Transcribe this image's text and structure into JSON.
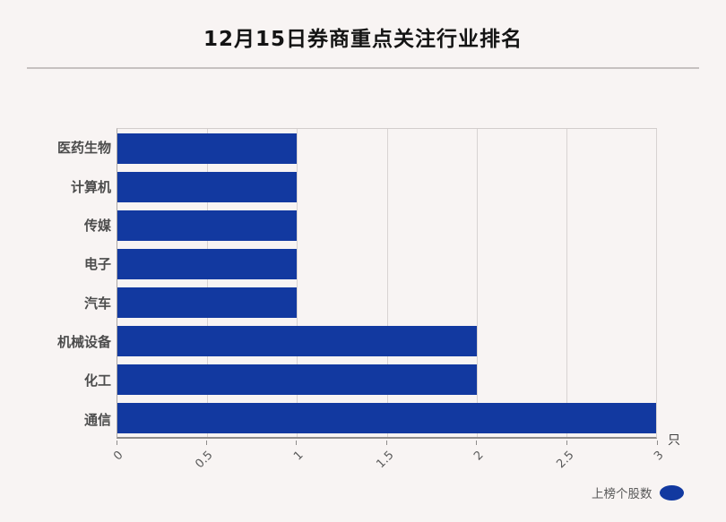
{
  "header": {
    "title": "12月15日券商重点关注行业排名"
  },
  "chart_data": {
    "type": "bar",
    "orientation": "horizontal",
    "title": "12月15日券商重点关注行业排名",
    "categories": [
      "医药生物",
      "计算机",
      "传媒",
      "电子",
      "汽车",
      "机械设备",
      "化工",
      "通信"
    ],
    "series": [
      {
        "name": "上榜个股数",
        "values": [
          1,
          1,
          1,
          1,
          1,
          2,
          2,
          3
        ]
      }
    ],
    "xlim": [
      0,
      3
    ],
    "xticks": [
      0,
      0.5,
      1,
      1.5,
      2,
      2.5,
      3
    ],
    "xtick_labels": [
      "0",
      "0.5",
      "1",
      "1.5",
      "2",
      "2.5",
      "3"
    ],
    "xtick_rotation_deg": -45,
    "x_unit": "只",
    "grid": true,
    "legend_position": "bottom-right",
    "colors": {
      "bar": "#1239a0",
      "background": "#f8f4f3",
      "gridline": "#d8d3d2",
      "axis_line": "#8e8c8b",
      "title_text": "#141414",
      "ytick_text": "#4c4c4c",
      "xtick_text": "#5a5a5a"
    }
  },
  "axis": {
    "unit_label": "只"
  },
  "legend": {
    "label": "上榜个股数"
  }
}
